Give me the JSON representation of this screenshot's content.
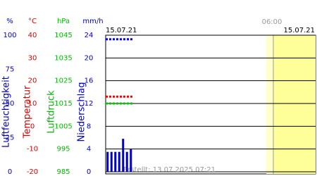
{
  "chart_data": {
    "type": "meteogram",
    "date_labels": [
      "15.07.21",
      "15.07.21"
    ],
    "time_label": "06:00",
    "created": "Erstellt: 13.07.2025 07:21",
    "categories": [
      null,
      null,
      null,
      null,
      null,
      null,
      null
    ],
    "axes": [
      {
        "unit": "%",
        "label": "Luftfeuchtigkeit",
        "color": "#0000cc",
        "ylim": [
          0,
          100
        ],
        "yticks": [
          0,
          25,
          50,
          75,
          100
        ]
      },
      {
        "unit": "°C",
        "label": "Temperatur",
        "color": "#dd0000",
        "ylim": [
          -20,
          40
        ],
        "yticks": [
          -20,
          -10,
          0,
          10,
          20,
          30,
          40
        ]
      },
      {
        "unit": "hPa",
        "label": "Luftdruck",
        "color": "#00bb00",
        "ylim": [
          985,
          1045
        ],
        "yticks": [
          985,
          995,
          1005,
          1015,
          1025,
          1035,
          1045
        ]
      },
      {
        "unit": "mm/h",
        "label": "Niederschlag",
        "color": "#0000cc",
        "ylim": [
          0,
          24
        ],
        "yticks": [
          0,
          4,
          8,
          12,
          16,
          20,
          24
        ]
      }
    ],
    "series": [
      {
        "axis": 0,
        "style": "dotted",
        "color": "#0000ff",
        "values": [
          97,
          97,
          97,
          97,
          97,
          97,
          97
        ]
      },
      {
        "axis": 1,
        "style": "dotted",
        "color": "#ff0000",
        "values": [
          13,
          13,
          13,
          13,
          13,
          13,
          13
        ]
      },
      {
        "axis": 2,
        "style": "dotted",
        "color": "#00cc00",
        "values": [
          1015,
          1015,
          1015,
          1015,
          1015,
          1015,
          1015
        ]
      },
      {
        "axis": 3,
        "style": "bar",
        "color": "#0000cc",
        "values": [
          3.5,
          3.5,
          3.5,
          3.5,
          5.8,
          3.5,
          4
        ]
      }
    ],
    "grid_axis": 1
  }
}
